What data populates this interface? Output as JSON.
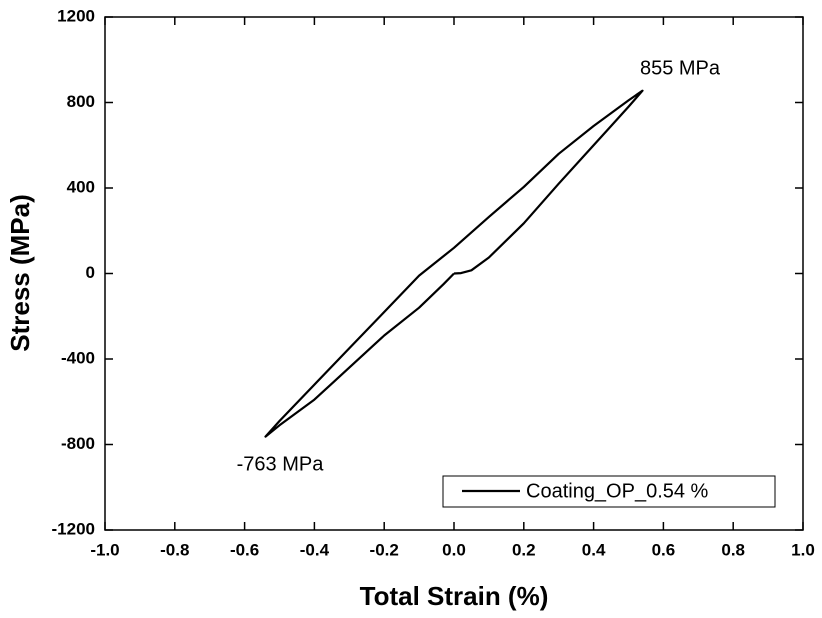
{
  "chart_data": {
    "type": "line",
    "xlabel": "Total Strain (%)",
    "ylabel": "Stress (MPa)",
    "x": [
      0,
      0.02,
      0.05,
      0.1,
      0.2,
      0.3,
      0.4,
      0.5,
      0.54,
      0.5,
      0.4,
      0.3,
      0.2,
      0.1,
      0,
      -0.1,
      -0.2,
      -0.3,
      -0.4,
      -0.5,
      -0.54,
      -0.5,
      -0.4,
      -0.3,
      -0.2,
      -0.1,
      -0.03,
      0
    ],
    "series": [
      {
        "name": "Coating_OP_0.54 %",
        "color": "#000000",
        "values": [
          0,
          2,
          15,
          75,
          235,
          420,
          600,
          780,
          855,
          810,
          690,
          560,
          405,
          265,
          120,
          -10,
          -180,
          -350,
          -520,
          -690,
          -763,
          -710,
          -590,
          -440,
          -290,
          -160,
          -50,
          0
        ]
      }
    ],
    "annotations": [
      "855 MPa",
      "-763 MPa"
    ],
    "xlim": [
      -1.0,
      1.0
    ],
    "xticks": [
      {
        "value": -1.0,
        "label": "-1.0"
      },
      -0.8,
      -0.6,
      -0.4,
      -0.2,
      {
        "value": 0,
        "label": "0.0"
      },
      0.2,
      0.4,
      0.6,
      0.8,
      {
        "value": 1.0,
        "label": "1.0"
      }
    ],
    "ylim": [
      -1200,
      1200
    ],
    "yticks": [
      -1200,
      -800,
      -400,
      0,
      400,
      800,
      1200
    ],
    "legend": "lower right"
  }
}
